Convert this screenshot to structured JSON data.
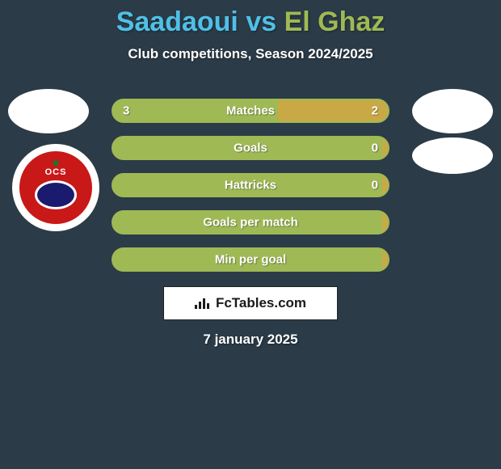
{
  "title": {
    "p1": "Saadaoui",
    "vs": " vs ",
    "p2": "El Ghaz",
    "p1_color": "#4fc0e8",
    "p2_color": "#9fb955"
  },
  "subtitle": "Club competitions, Season 2024/2025",
  "bars": [
    {
      "label": "Matches",
      "left": "3",
      "right": "2",
      "left_w": 60,
      "right_w": 40
    },
    {
      "label": "Goals",
      "left": "",
      "right": "0",
      "left_w": 98,
      "right_w": 2
    },
    {
      "label": "Hattricks",
      "left": "",
      "right": "0",
      "left_w": 98,
      "right_w": 2
    },
    {
      "label": "Goals per match",
      "left": "",
      "right": "",
      "left_w": 98,
      "right_w": 2
    },
    {
      "label": "Min per goal",
      "left": "",
      "right": "",
      "left_w": 98,
      "right_w": 2
    }
  ],
  "bar_colors": {
    "left_fill": "#9fb955",
    "right_fill": "#c9a946",
    "single_fill": "#9fb955"
  },
  "footer_logo": "FcTables.com",
  "date": "7 january 2025",
  "background": "#2b3b47"
}
